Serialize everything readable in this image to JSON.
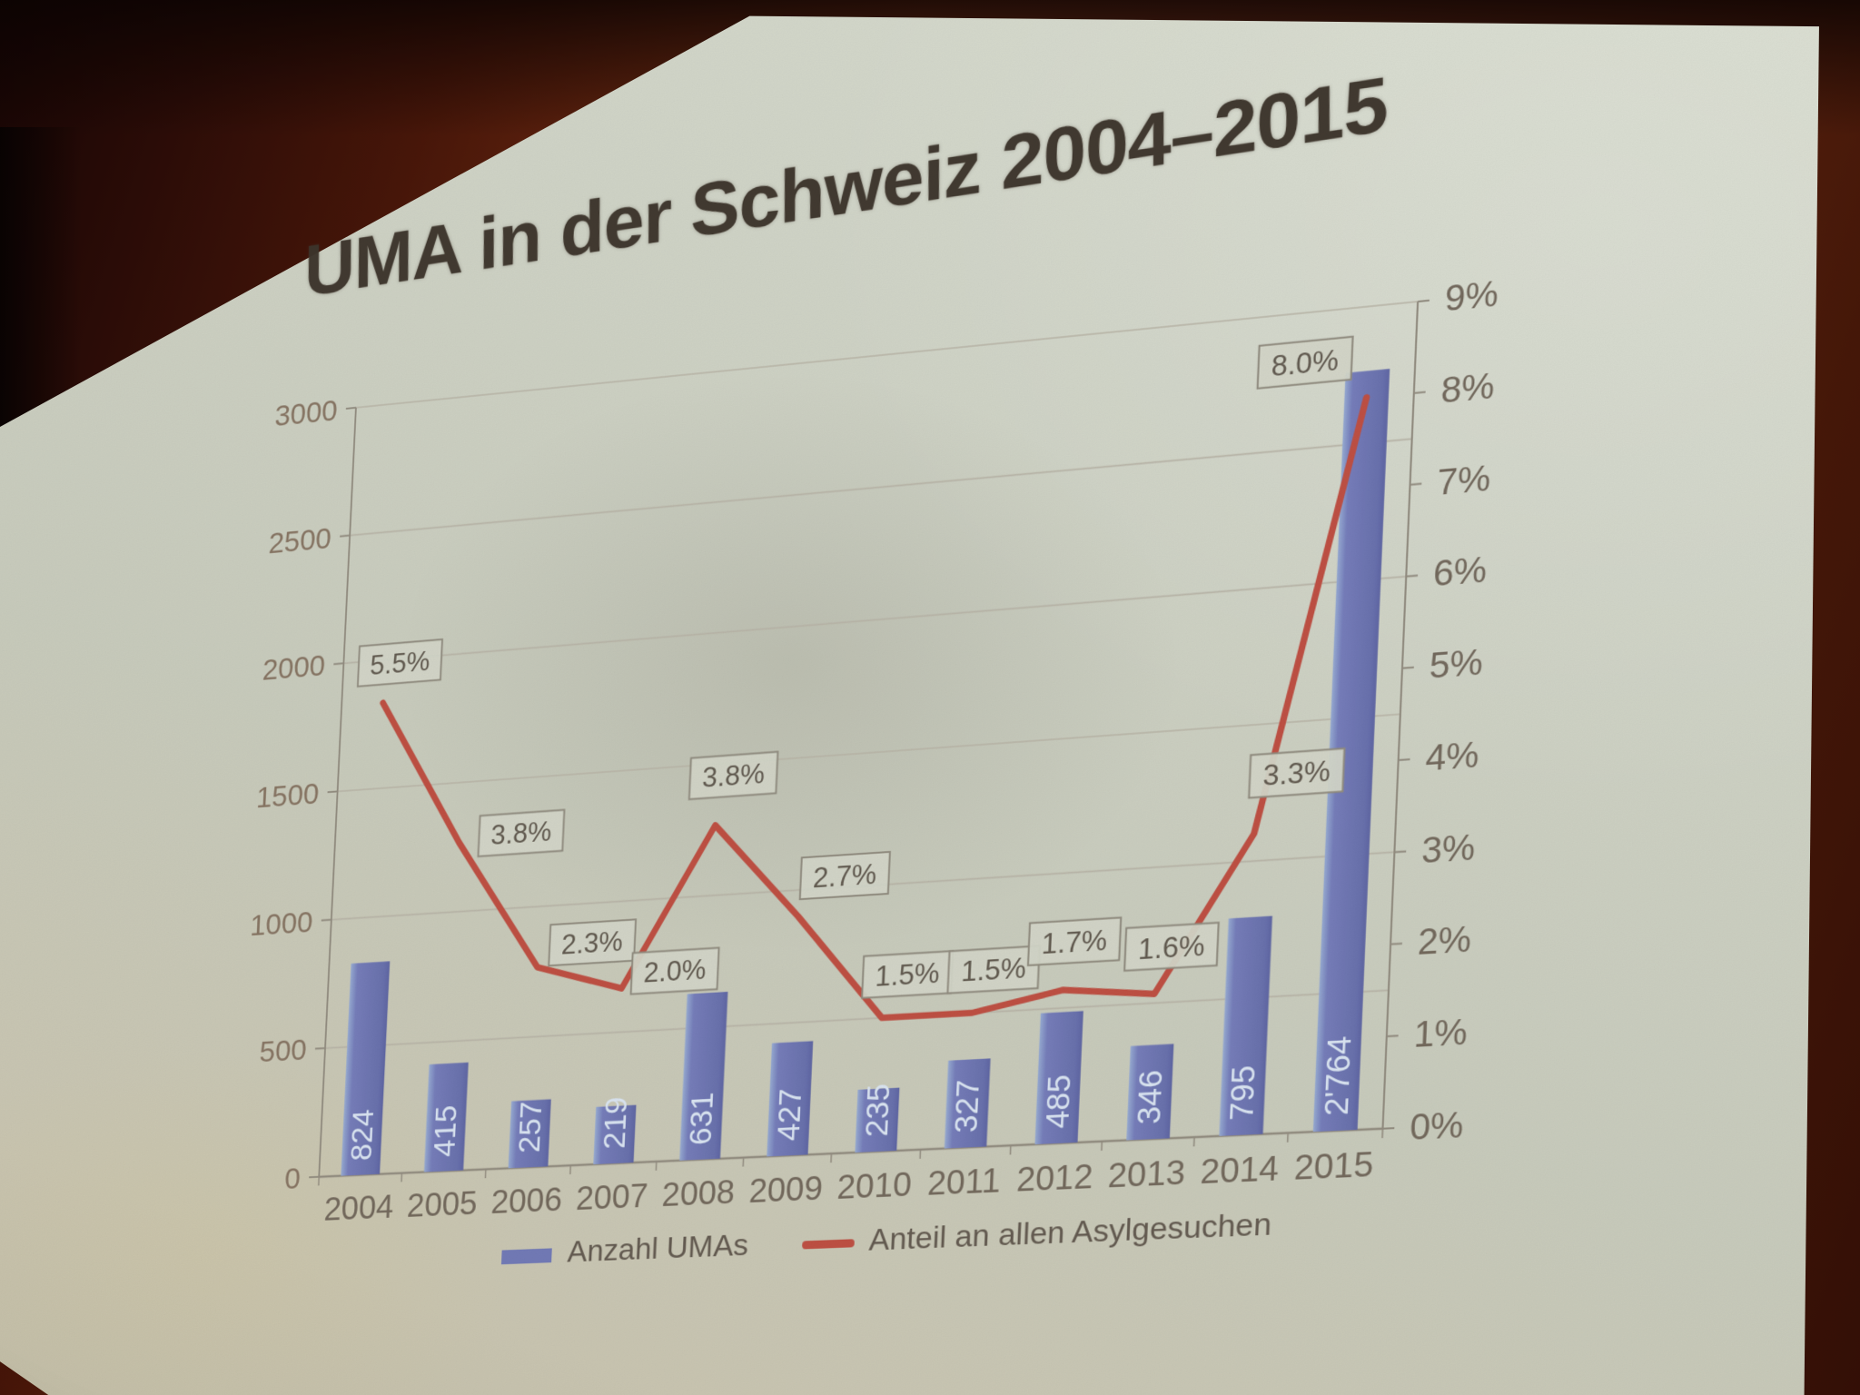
{
  "slide": {
    "title": "UMA in der Schweiz 2004–2015",
    "legend": {
      "bar_label": "Anzahl UMAs",
      "line_label": "Anteil an allen Asylgesuchen"
    }
  },
  "chart_data": {
    "type": "bar+line combo",
    "title": "UMA in der Schweiz 2004–2015",
    "categories": [
      "2004",
      "2005",
      "2006",
      "2007",
      "2008",
      "2009",
      "2010",
      "2011",
      "2012",
      "2013",
      "2014",
      "2015"
    ],
    "series": [
      {
        "name": "Anzahl UMAs",
        "type": "bar",
        "axis": "left",
        "color": "#6d76b5",
        "values": [
          824,
          415,
          257,
          219,
          631,
          427,
          235,
          327,
          485,
          346,
          795,
          2764
        ],
        "value_labels": [
          "824",
          "415",
          "257",
          "219",
          "631",
          "427",
          "235",
          "327",
          "485",
          "346",
          "795",
          "2'764"
        ]
      },
      {
        "name": "Anteil an allen Asylgesuchen",
        "type": "line",
        "axis": "right",
        "color": "#bc4a3e",
        "values": [
          5.5,
          3.8,
          2.3,
          2.0,
          3.8,
          2.7,
          1.5,
          1.5,
          1.7,
          1.6,
          3.3,
          8.0
        ],
        "point_labels": [
          "5.5%",
          "3.8%",
          "2.3%",
          "2.0%",
          "3.8%",
          "2.7%",
          "1.5%",
          "1.5%",
          "1.7%",
          "1.6%",
          "3.3%",
          "8.0%"
        ]
      }
    ],
    "left_axis": {
      "min": 0,
      "max": 3000,
      "step": 500,
      "tick_labels": [
        "0",
        "500",
        "1000",
        "1500",
        "2000",
        "2500",
        "3000"
      ]
    },
    "right_axis": {
      "min": 0,
      "max": 9,
      "step": 1,
      "tick_labels": [
        "0%",
        "1%",
        "2%",
        "3%",
        "4%",
        "5%",
        "6%",
        "7%",
        "8%",
        "9%"
      ]
    },
    "grid": true,
    "legend_position": "bottom"
  }
}
